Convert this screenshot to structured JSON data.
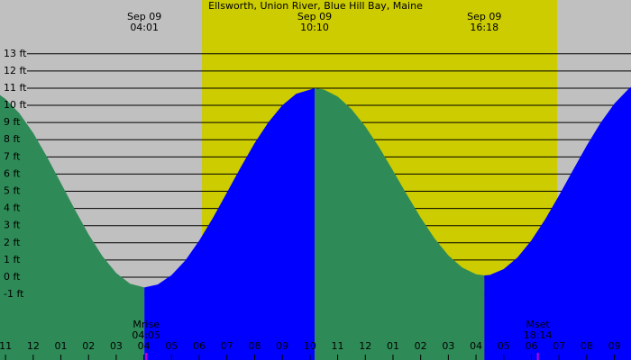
{
  "chart_data": {
    "type": "area",
    "title": "Ellsworth, Union River, Blue Hill Bay, Maine",
    "x": [
      -1.2,
      -1,
      -0.5,
      0,
      0.5,
      1,
      1.5,
      2,
      2.5,
      3,
      3.5,
      4.017,
      4.5,
      5,
      5.5,
      6,
      6.5,
      7,
      7.5,
      8,
      8.5,
      9,
      9.5,
      10.167,
      10.5,
      11,
      11.5,
      12,
      12.5,
      13,
      13.5,
      14,
      14.5,
      15,
      15.5,
      16,
      16.3,
      16.5,
      17,
      17.5,
      18,
      18.5,
      19,
      19.5,
      20,
      20.5,
      21,
      21.5,
      21.6
    ],
    "values": [
      10.6,
      10.37,
      9.54,
      8.39,
      7.0,
      5.48,
      3.95,
      2.49,
      1.22,
      0.24,
      -0.38,
      -0.6,
      -0.43,
      0.12,
      0.98,
      2.13,
      3.47,
      4.93,
      6.4,
      7.8,
      9.02,
      10.0,
      10.67,
      11.0,
      10.92,
      10.51,
      9.78,
      8.77,
      7.56,
      6.2,
      4.81,
      3.47,
      2.26,
      1.27,
      0.56,
      0.17,
      0.1,
      0.13,
      0.47,
      1.15,
      2.14,
      3.37,
      4.76,
      6.22,
      7.66,
      8.98,
      10.1,
      10.94,
      11.07
    ],
    "rising_color": "#0000ff",
    "falling_color": "#2e8b57",
    "background_color": "#c0c0c0",
    "daylight_color": "#cccc00",
    "daylight": [
      6.1,
      18.93
    ],
    "xlim": [
      -1.2,
      21.6
    ],
    "ylim": [
      -4.82,
      16.13
    ],
    "yticks": [
      {
        "value": 13,
        "label": "13 ft"
      },
      {
        "value": 12,
        "label": "12 ft"
      },
      {
        "value": 11,
        "label": "11 ft"
      },
      {
        "value": 10,
        "label": "10 ft"
      },
      {
        "value": 9,
        "label": "9 ft"
      },
      {
        "value": 8,
        "label": "8 ft"
      },
      {
        "value": 7,
        "label": "7 ft"
      },
      {
        "value": 6,
        "label": "6 ft"
      },
      {
        "value": 5,
        "label": "5 ft"
      },
      {
        "value": 4,
        "label": "4 ft"
      },
      {
        "value": 3,
        "label": "3 ft"
      },
      {
        "value": 2,
        "label": "2 ft"
      },
      {
        "value": 1,
        "label": "1 ft"
      },
      {
        "value": 0,
        "label": "0 ft"
      },
      {
        "value": -1,
        "label": "-1 ft"
      }
    ],
    "xticks": [
      {
        "value": -1,
        "label": "11"
      },
      {
        "value": 0,
        "label": "12"
      },
      {
        "value": 1,
        "label": "01"
      },
      {
        "value": 2,
        "label": "02"
      },
      {
        "value": 3,
        "label": "03"
      },
      {
        "value": 4,
        "label": "04"
      },
      {
        "value": 5,
        "label": "05"
      },
      {
        "value": 6,
        "label": "06"
      },
      {
        "value": 7,
        "label": "07"
      },
      {
        "value": 8,
        "label": "08"
      },
      {
        "value": 9,
        "label": "09"
      },
      {
        "value": 10,
        "label": "10"
      },
      {
        "value": 11,
        "label": "11"
      },
      {
        "value": 12,
        "label": "12"
      },
      {
        "value": 13,
        "label": "01"
      },
      {
        "value": 14,
        "label": "02"
      },
      {
        "value": 15,
        "label": "03"
      },
      {
        "value": 16,
        "label": "04"
      },
      {
        "value": 17,
        "label": "05"
      },
      {
        "value": 18,
        "label": "06"
      },
      {
        "value": 19,
        "label": "07"
      },
      {
        "value": 20,
        "label": "08"
      },
      {
        "value": 21,
        "label": "09"
      }
    ],
    "grid": true,
    "extremes": [
      {
        "date": "Sep 09",
        "time": "04:01",
        "x": 4.017
      },
      {
        "date": "Sep 09",
        "time": "10:10",
        "x": 10.167
      },
      {
        "date": "Sep 09",
        "time": "16:18",
        "x": 16.3
      }
    ],
    "annotations": [
      {
        "label": "Mrise",
        "time": "04:05",
        "x": 4.083,
        "color": "#cc00cc"
      },
      {
        "label": "Mset",
        "time": "18:14",
        "x": 18.233,
        "color": "#cc00cc"
      }
    ]
  }
}
